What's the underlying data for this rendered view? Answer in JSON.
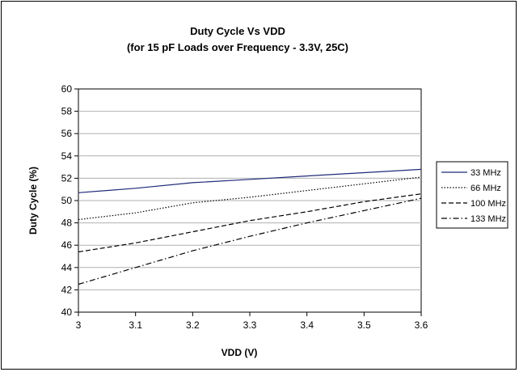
{
  "chart_data": {
    "type": "line",
    "title": "Duty Cycle Vs VDD",
    "subtitle": "(for 15 pF Loads over Frequency - 3.3V, 25C)",
    "xlabel": "VDD (V)",
    "ylabel": "Duty Cycle (%)",
    "xlim": [
      3,
      3.6
    ],
    "ylim": [
      40,
      60
    ],
    "xticks": [
      "3",
      "3.1",
      "3.2",
      "3.3",
      "3.4",
      "3.5",
      "3.6"
    ],
    "yticks": [
      "40",
      "42",
      "44",
      "46",
      "48",
      "50",
      "52",
      "54",
      "56",
      "58",
      "60"
    ],
    "grid": "horizontal",
    "legend_position": "right",
    "x": [
      3.0,
      3.1,
      3.2,
      3.3,
      3.4,
      3.5,
      3.6
    ],
    "series": [
      {
        "name": "33 MHz",
        "values": [
          50.7,
          51.1,
          51.6,
          51.9,
          52.2,
          52.5,
          52.8
        ],
        "color": "#1f2a7a",
        "dash": "solid"
      },
      {
        "name": "66 MHz",
        "values": [
          48.3,
          48.9,
          49.8,
          50.3,
          50.9,
          51.5,
          52.1
        ],
        "color": "#000000",
        "dash": "dotted"
      },
      {
        "name": "100 MHz",
        "values": [
          45.4,
          46.2,
          47.2,
          48.2,
          49.0,
          49.9,
          50.6
        ],
        "color": "#000000",
        "dash": "dashed"
      },
      {
        "name": "133 MHz",
        "values": [
          42.5,
          44.0,
          45.5,
          46.8,
          48.0,
          49.1,
          50.2
        ],
        "color": "#000000",
        "dash": "dashdot"
      }
    ]
  }
}
